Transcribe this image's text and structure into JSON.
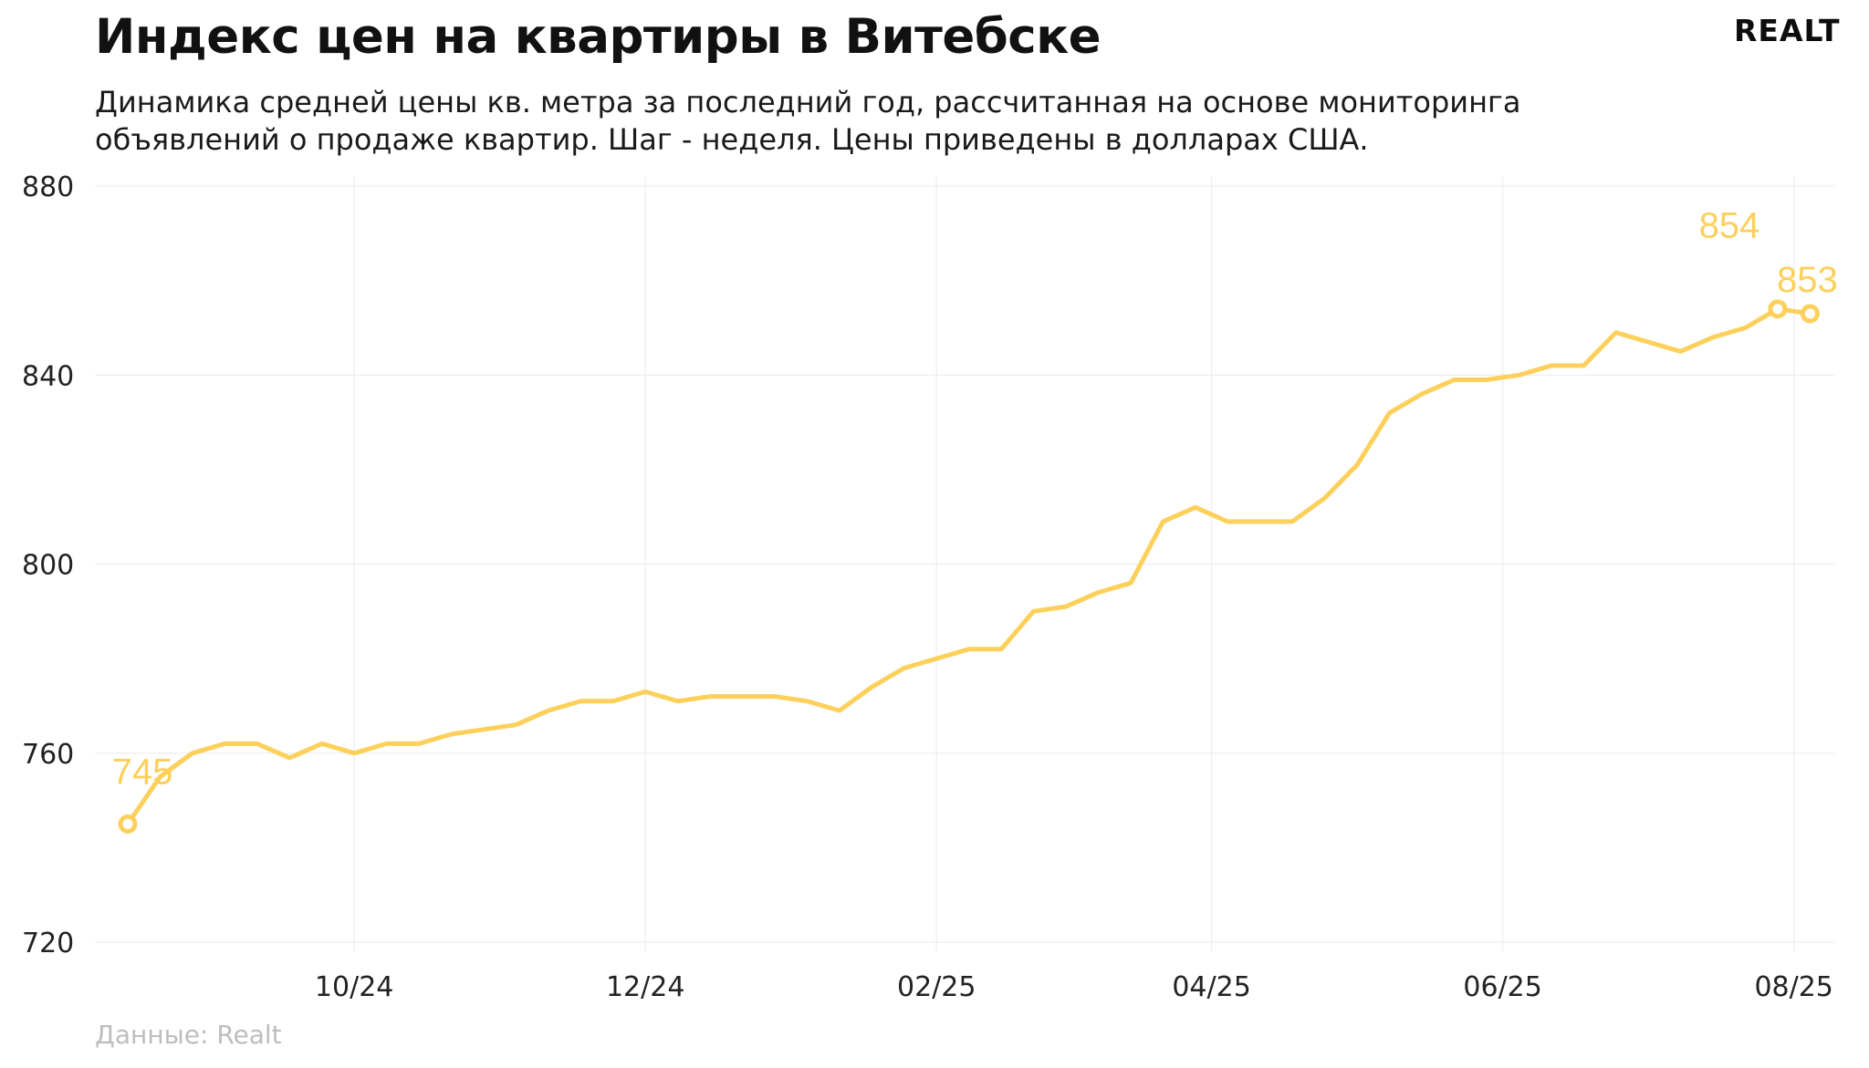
{
  "header": {
    "title": "Индекс цен на квартиры в Витебске",
    "subtitle_line1": "Динамика средней цены кв. метра за последний год, рассчитанная на основе мониторинга",
    "subtitle_line2": "объявлений о продаже квартир. Шаг - неделя. Цены приведены в долларах США.",
    "logo": "REALT"
  },
  "footer": {
    "source": "Данные: Realt"
  },
  "chart_data": {
    "type": "line",
    "title": "Индекс цен на квартиры в Витебске",
    "ylim": [
      720,
      880
    ],
    "yticks": [
      720,
      760,
      800,
      840,
      880
    ],
    "xticks": [
      {
        "label": "10/24",
        "index": 7
      },
      {
        "label": "12/24",
        "index": 16
      },
      {
        "label": "02/25",
        "index": 25
      },
      {
        "label": "04/25",
        "index": 33.5
      },
      {
        "label": "06/25",
        "index": 42.5
      },
      {
        "label": "08/25",
        "index": 51.5
      }
    ],
    "grid": true,
    "color": "#fcd05a",
    "series": [
      {
        "values": [
          745,
          755,
          760,
          762,
          762,
          759,
          762,
          760,
          762,
          762,
          764,
          765,
          766,
          769,
          771,
          771,
          773,
          771,
          772,
          772,
          772,
          771,
          769,
          774,
          778,
          780,
          782,
          782,
          790,
          791,
          794,
          796,
          809,
          812,
          809,
          809,
          809,
          814,
          821,
          832,
          836,
          839,
          839,
          840,
          842,
          842,
          849,
          847,
          845,
          848,
          850,
          854,
          853
        ]
      }
    ],
    "annotations": [
      {
        "index": 0,
        "label": "745"
      },
      {
        "index": 51,
        "label": "854"
      },
      {
        "index": 52,
        "label": "853"
      }
    ]
  }
}
